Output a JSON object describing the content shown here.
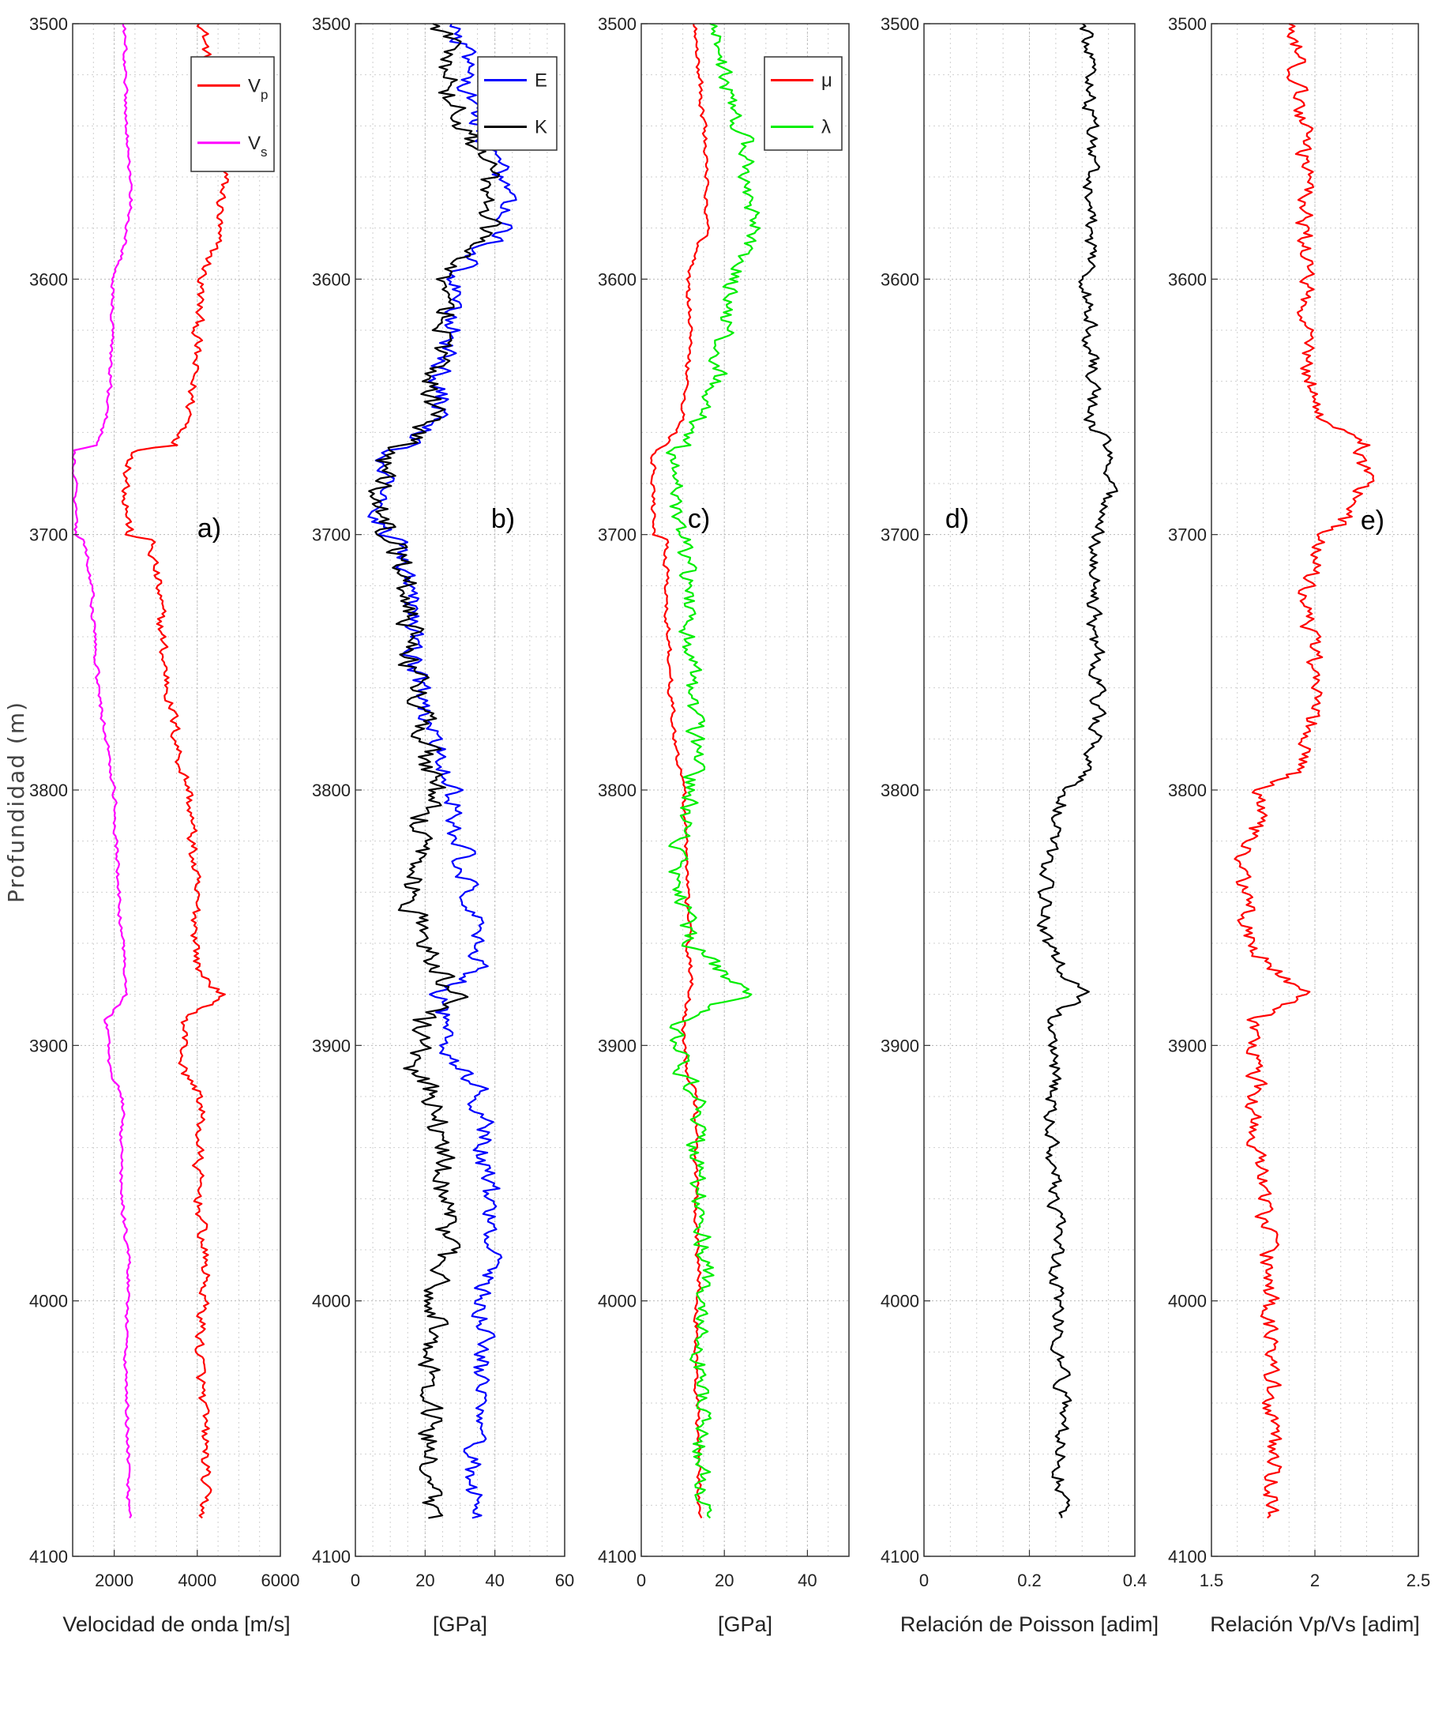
{
  "figure": {
    "ylabel": "Profundidad (m)"
  },
  "chart_data": [
    {
      "type": "line",
      "panel_label": "a)",
      "xlabel": "Velocidad de onda [m/s]",
      "ylabel": "Profundidad (m)",
      "xlim": [
        1000,
        6000
      ],
      "ylim": [
        3500,
        4100
      ],
      "y_reversed": true,
      "xticks": [
        "2000",
        "4000",
        "6000"
      ],
      "xtick_values": [
        2000,
        4000,
        6000
      ],
      "yticks": [
        "3500",
        "3600",
        "3700",
        "3800",
        "3900",
        "4000",
        "4100"
      ],
      "grid": true,
      "legend": {
        "position": "top-right",
        "entries": [
          {
            "name": "Vp",
            "label_main": "V",
            "label_sub": "p",
            "color": "#ff0000"
          },
          {
            "name": "Vs",
            "label_main": "V",
            "label_sub": "s",
            "color": "#ff00ff"
          }
        ]
      },
      "series": [
        {
          "name": "Vp",
          "color": "#ff0000",
          "noise": 200,
          "knots": [
            [
              3500,
              4150
            ],
            [
              3520,
              4250
            ],
            [
              3560,
              4650
            ],
            [
              3585,
              4450
            ],
            [
              3600,
              4100
            ],
            [
              3620,
              4000
            ],
            [
              3640,
              3900
            ],
            [
              3655,
              3800
            ],
            [
              3665,
              3500
            ],
            [
              3667,
              2500
            ],
            [
              3680,
              2300
            ],
            [
              3700,
              2350
            ],
            [
              3702,
              2850
            ],
            [
              3720,
              3050
            ],
            [
              3750,
              3200
            ],
            [
              3770,
              3400
            ],
            [
              3790,
              3600
            ],
            [
              3800,
              3800
            ],
            [
              3840,
              3950
            ],
            [
              3870,
              4000
            ],
            [
              3880,
              4600
            ],
            [
              3890,
              3700
            ],
            [
              3910,
              3650
            ],
            [
              3920,
              4100
            ],
            [
              3950,
              4000
            ],
            [
              3990,
              4200
            ],
            [
              4020,
              4050
            ],
            [
              4060,
              4200
            ],
            [
              4085,
              4150
            ]
          ]
        },
        {
          "name": "Vs",
          "color": "#ff00ff",
          "noise": 80,
          "knots": [
            [
              3500,
              2250
            ],
            [
              3540,
              2300
            ],
            [
              3570,
              2400
            ],
            [
              3585,
              2300
            ],
            [
              3600,
              2000
            ],
            [
              3620,
              1950
            ],
            [
              3640,
              1900
            ],
            [
              3655,
              1800
            ],
            [
              3665,
              1600
            ],
            [
              3667,
              1050
            ],
            [
              3700,
              1050
            ],
            [
              3702,
              1300
            ],
            [
              3720,
              1450
            ],
            [
              3760,
              1600
            ],
            [
              3780,
              1800
            ],
            [
              3800,
              2000
            ],
            [
              3840,
              2100
            ],
            [
              3880,
              2300
            ],
            [
              3890,
              1800
            ],
            [
              3910,
              1900
            ],
            [
              3920,
              2200
            ],
            [
              3950,
              2150
            ],
            [
              3990,
              2350
            ],
            [
              4020,
              2250
            ],
            [
              4060,
              2350
            ],
            [
              4085,
              2350
            ]
          ]
        }
      ]
    },
    {
      "type": "line",
      "panel_label": "b)",
      "xlabel": "[GPa]",
      "xlim": [
        0,
        60
      ],
      "ylim": [
        3500,
        4100
      ],
      "y_reversed": true,
      "xticks": [
        "0",
        "20",
        "40",
        "60"
      ],
      "xtick_values": [
        0,
        20,
        40,
        60
      ],
      "yticks": [
        "3500",
        "3600",
        "3700",
        "3800",
        "3900",
        "4000",
        "4100"
      ],
      "grid": true,
      "legend": {
        "position": "top-right",
        "entries": [
          {
            "name": "E",
            "label_main": "E",
            "label_sub": "",
            "color": "#0000ff"
          },
          {
            "name": "K",
            "label_main": "K",
            "label_sub": "",
            "color": "#000000"
          }
        ]
      },
      "series": [
        {
          "name": "E",
          "color": "#0000ff",
          "noise": 5,
          "knots": [
            [
              3500,
              30
            ],
            [
              3530,
              33
            ],
            [
              3560,
              42
            ],
            [
              3580,
              42
            ],
            [
              3600,
              28
            ],
            [
              3620,
              28
            ],
            [
              3640,
              24
            ],
            [
              3655,
              25
            ],
            [
              3665,
              15
            ],
            [
              3667,
              8
            ],
            [
              3700,
              8
            ],
            [
              3702,
              12
            ],
            [
              3720,
              15
            ],
            [
              3760,
              18
            ],
            [
              3780,
              22
            ],
            [
              3800,
              28
            ],
            [
              3840,
              32
            ],
            [
              3870,
              36
            ],
            [
              3880,
              25
            ],
            [
              3900,
              26
            ],
            [
              3920,
              36
            ],
            [
              3960,
              38
            ],
            [
              3990,
              38
            ],
            [
              4020,
              36
            ],
            [
              4060,
              34
            ],
            [
              4085,
              34
            ]
          ]
        },
        {
          "name": "K",
          "color": "#000000",
          "noise": 6,
          "knots": [
            [
              3500,
              25
            ],
            [
              3530,
              28
            ],
            [
              3560,
              38
            ],
            [
              3580,
              38
            ],
            [
              3600,
              25
            ],
            [
              3620,
              27
            ],
            [
              3640,
              22
            ],
            [
              3655,
              22
            ],
            [
              3665,
              14
            ],
            [
              3667,
              8
            ],
            [
              3700,
              8
            ],
            [
              3702,
              12
            ],
            [
              3720,
              15
            ],
            [
              3760,
              17
            ],
            [
              3780,
              20
            ],
            [
              3800,
              22
            ],
            [
              3830,
              16
            ],
            [
              3860,
              18
            ],
            [
              3880,
              30
            ],
            [
              3890,
              18
            ],
            [
              3910,
              17
            ],
            [
              3925,
              24
            ],
            [
              3950,
              25
            ],
            [
              3970,
              26
            ],
            [
              3990,
              25
            ],
            [
              4020,
              22
            ],
            [
              4060,
              22
            ],
            [
              4085,
              22
            ]
          ]
        }
      ]
    },
    {
      "type": "line",
      "panel_label": "c)",
      "xlabel": "[GPa]",
      "xlim": [
        0,
        50
      ],
      "ylim": [
        3500,
        4100
      ],
      "y_reversed": true,
      "xticks": [
        "0",
        "20",
        "40"
      ],
      "xtick_values": [
        0,
        20,
        40
      ],
      "yticks": [
        "3500",
        "3600",
        "3700",
        "3800",
        "3900",
        "4000",
        "4100"
      ],
      "grid": true,
      "legend": {
        "position": "top-right",
        "entries": [
          {
            "name": "μ",
            "label_main": "μ",
            "label_sub": "",
            "color": "#ff0000"
          },
          {
            "name": "λ",
            "label_main": "λ",
            "label_sub": "",
            "color": "#00ee00"
          }
        ]
      },
      "series": [
        {
          "name": "μ",
          "color": "#ff0000",
          "noise": 1,
          "knots": [
            [
              3500,
              13
            ],
            [
              3520,
              14
            ],
            [
              3540,
              15
            ],
            [
              3560,
              16
            ],
            [
              3580,
              16
            ],
            [
              3590,
              13
            ],
            [
              3600,
              11
            ],
            [
              3620,
              12
            ],
            [
              3640,
              11
            ],
            [
              3655,
              10
            ],
            [
              3665,
              6
            ],
            [
              3667,
              3
            ],
            [
              3700,
              3
            ],
            [
              3702,
              6
            ],
            [
              3720,
              6
            ],
            [
              3760,
              7
            ],
            [
              3780,
              8
            ],
            [
              3800,
              10
            ],
            [
              3840,
              11
            ],
            [
              3880,
              12
            ],
            [
              3890,
              10
            ],
            [
              3910,
              11
            ],
            [
              3920,
              13
            ],
            [
              3960,
              13
            ],
            [
              3990,
              14
            ],
            [
              4020,
              13
            ],
            [
              4060,
              14
            ],
            [
              4085,
              14
            ]
          ]
        },
        {
          "name": "λ",
          "color": "#00ee00",
          "noise": 3.5,
          "knots": [
            [
              3500,
              18
            ],
            [
              3520,
              20
            ],
            [
              3540,
              24
            ],
            [
              3560,
              26
            ],
            [
              3580,
              27
            ],
            [
              3600,
              22
            ],
            [
              3620,
              20
            ],
            [
              3640,
              18
            ],
            [
              3655,
              14
            ],
            [
              3665,
              10
            ],
            [
              3667,
              8
            ],
            [
              3690,
              9
            ],
            [
              3700,
              10
            ],
            [
              3720,
              11
            ],
            [
              3760,
              12
            ],
            [
              3780,
              13
            ],
            [
              3800,
              12
            ],
            [
              3830,
              8
            ],
            [
              3860,
              12
            ],
            [
              3880,
              25
            ],
            [
              3890,
              9
            ],
            [
              3910,
              10
            ],
            [
              3920,
              14
            ],
            [
              3950,
              13
            ],
            [
              3970,
              15
            ],
            [
              3990,
              16
            ],
            [
              4020,
              14
            ],
            [
              4060,
              14
            ],
            [
              4085,
              15
            ]
          ]
        }
      ]
    },
    {
      "type": "line",
      "panel_label": "d)",
      "xlabel": "Relación de Poisson [adim]",
      "xlim": [
        0,
        0.4
      ],
      "ylim": [
        3500,
        4100
      ],
      "y_reversed": true,
      "xticks": [
        "0",
        "0.2",
        "0.4"
      ],
      "xtick_values": [
        0,
        0.2,
        0.4
      ],
      "yticks": [
        "3500",
        "3600",
        "3700",
        "3800",
        "3900",
        "4000",
        "4100"
      ],
      "grid": true,
      "series": [
        {
          "name": "",
          "color": "#000000",
          "noise": 0.022,
          "knots": [
            [
              3500,
              0.31
            ],
            [
              3550,
              0.32
            ],
            [
              3600,
              0.31
            ],
            [
              3640,
              0.32
            ],
            [
              3655,
              0.31
            ],
            [
              3665,
              0.35
            ],
            [
              3690,
              0.35
            ],
            [
              3700,
              0.33
            ],
            [
              3720,
              0.32
            ],
            [
              3760,
              0.33
            ],
            [
              3790,
              0.32
            ],
            [
              3800,
              0.27
            ],
            [
              3830,
              0.23
            ],
            [
              3860,
              0.23
            ],
            [
              3880,
              0.3
            ],
            [
              3890,
              0.24
            ],
            [
              3910,
              0.25
            ],
            [
              3930,
              0.24
            ],
            [
              3960,
              0.25
            ],
            [
              3990,
              0.25
            ],
            [
              4020,
              0.26
            ],
            [
              4060,
              0.26
            ],
            [
              4085,
              0.26
            ]
          ]
        }
      ]
    },
    {
      "type": "line",
      "panel_label": "e)",
      "xlabel": "Relación Vp/Vs [adim]",
      "xlim": [
        1.5,
        2.5
      ],
      "ylim": [
        3500,
        4100
      ],
      "y_reversed": true,
      "xticks": [
        "1.5",
        "2",
        "2.5"
      ],
      "xtick_values": [
        1.5,
        2,
        2.5
      ],
      "yticks": [
        "3500",
        "3600",
        "3700",
        "3800",
        "3900",
        "4000",
        "4100"
      ],
      "grid": true,
      "series": [
        {
          "name": "",
          "color": "#ff0000",
          "noise": 0.07,
          "knots": [
            [
              3500,
              1.9
            ],
            [
              3550,
              1.95
            ],
            [
              3600,
              1.95
            ],
            [
              3640,
              1.98
            ],
            [
              3655,
              2.0
            ],
            [
              3665,
              2.25
            ],
            [
              3690,
              2.2
            ],
            [
              3700,
              2.05
            ],
            [
              3720,
              1.95
            ],
            [
              3760,
              2.0
            ],
            [
              3790,
              1.95
            ],
            [
              3800,
              1.75
            ],
            [
              3830,
              1.65
            ],
            [
              3860,
              1.68
            ],
            [
              3880,
              1.95
            ],
            [
              3890,
              1.7
            ],
            [
              3910,
              1.72
            ],
            [
              3930,
              1.7
            ],
            [
              3960,
              1.75
            ],
            [
              3990,
              1.78
            ],
            [
              4020,
              1.78
            ],
            [
              4060,
              1.8
            ],
            [
              4085,
              1.8
            ]
          ]
        }
      ]
    }
  ]
}
